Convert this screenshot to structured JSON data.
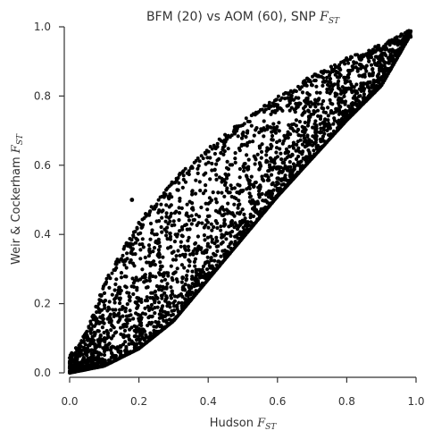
{
  "chart_data": {
    "type": "scatter",
    "title": "BFM (20) vs AOM (60), SNP F_ST",
    "title_parts": {
      "text": "BFM (20) vs AOM (60), SNP ",
      "var": "F",
      "sub": "ST"
    },
    "xlabel": "Hudson F_ST",
    "xlabel_parts": {
      "text": "Hudson ",
      "var": "F",
      "sub": "ST"
    },
    "ylabel": "Weir & Cockerham F_ST",
    "ylabel_parts": {
      "text": "Weir & Cockerham ",
      "var": "F",
      "sub": "ST"
    },
    "xlim": [
      0.0,
      1.0
    ],
    "ylim": [
      0.0,
      1.0
    ],
    "xticks": [
      0.0,
      0.2,
      0.4,
      0.6,
      0.8,
      1.0
    ],
    "yticks": [
      0.0,
      0.2,
      0.4,
      0.6,
      0.8,
      1.0
    ],
    "xtick_labels": [
      "0.0",
      "0.2",
      "0.4",
      "0.6",
      "0.8",
      "1.0"
    ],
    "ytick_labels": [
      "0.0",
      "0.2",
      "0.4",
      "0.6",
      "0.8",
      "1.0"
    ],
    "grid": false,
    "marker_color": "#000000",
    "band_description": "dense band of points between a lower curve and an upper curve",
    "lower_curve": [
      [
        0.0,
        0.0
      ],
      [
        0.1,
        0.02
      ],
      [
        0.2,
        0.07
      ],
      [
        0.3,
        0.15
      ],
      [
        0.4,
        0.27
      ],
      [
        0.5,
        0.39
      ],
      [
        0.6,
        0.51
      ],
      [
        0.7,
        0.62
      ],
      [
        0.8,
        0.73
      ],
      [
        0.9,
        0.83
      ],
      [
        0.98,
        0.97
      ]
    ],
    "upper_curve": [
      [
        0.0,
        0.05
      ],
      [
        0.05,
        0.12
      ],
      [
        0.1,
        0.26
      ],
      [
        0.2,
        0.44
      ],
      [
        0.3,
        0.56
      ],
      [
        0.4,
        0.65
      ],
      [
        0.5,
        0.73
      ],
      [
        0.6,
        0.8
      ],
      [
        0.7,
        0.86
      ],
      [
        0.8,
        0.91
      ],
      [
        0.9,
        0.95
      ],
      [
        0.98,
        0.99
      ]
    ],
    "outliers": [
      [
        0.18,
        0.5
      ],
      [
        0.19,
        0.07
      ]
    ]
  }
}
